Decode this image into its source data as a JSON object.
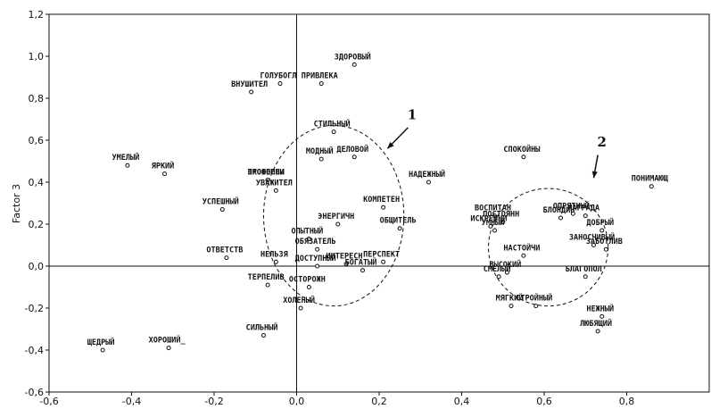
{
  "chart_data": {
    "type": "scatter",
    "ylabel": "Factor 3",
    "xlim": [
      -0.6,
      1.0
    ],
    "ylim": [
      -0.6,
      1.2
    ],
    "x_ticks": [
      "-0,6",
      "-0,4",
      "-0,2",
      "0,0",
      "0,2",
      "0,4",
      "0,6",
      "0,8"
    ],
    "y_ticks": [
      "1,2",
      "1,0",
      "0,8",
      "0,6",
      "0,4",
      "0,2",
      "0,0",
      "-0,2",
      "-0,4",
      "-0,6"
    ],
    "grid": false,
    "reference_lines": {
      "x": 0,
      "y": 0
    },
    "points": [
      {
        "label": "ЗДОРОВЫЙ",
        "x": 0.14,
        "y": 0.96
      },
      {
        "label": "ГОЛУБОГЛ",
        "x": -0.04,
        "y": 0.87
      },
      {
        "label": "ПРИВЛЕКА",
        "x": 0.06,
        "y": 0.87
      },
      {
        "label": "ВНУШИТЕЛ",
        "x": -0.11,
        "y": 0.83
      },
      {
        "label": "СТИЛЬНЫЙ",
        "x": 0.09,
        "y": 0.64
      },
      {
        "label": "МОДНЫЙ",
        "x": 0.06,
        "y": 0.51
      },
      {
        "label": "ДЕЛОВОЙ",
        "x": 0.14,
        "y": 0.52
      },
      {
        "label": "УМЕЛЫЙ",
        "x": -0.41,
        "y": 0.48
      },
      {
        "label": "ЯРКИЙ",
        "x": -0.32,
        "y": 0.44
      },
      {
        "label": "ПРОФЕССИ",
        "x": -0.07,
        "y": 0.41
      },
      {
        "label": "ЭКОНОМНЫ",
        "x": -0.07,
        "y": 0.41
      },
      {
        "label": "УВАЖИТЕЛ",
        "x": -0.05,
        "y": 0.36
      },
      {
        "label": "УСПЕШНЫЙ",
        "x": -0.18,
        "y": 0.27
      },
      {
        "label": "КОМПЕТЕН",
        "x": 0.21,
        "y": 0.28
      },
      {
        "label": "ЭНЕРГИЧН",
        "x": 0.1,
        "y": 0.2
      },
      {
        "label": "ОБЩИТЕЛЬ",
        "x": 0.25,
        "y": 0.18
      },
      {
        "label": "НАДЕЖНЫЙ",
        "x": 0.32,
        "y": 0.4
      },
      {
        "label": "ОПЫТНЫЙ",
        "x": 0.03,
        "y": 0.13
      },
      {
        "label": "ОБЯЗАТЕЛЬ",
        "x": 0.05,
        "y": 0.08
      },
      {
        "label": "ОТВЕТСТВ",
        "x": -0.17,
        "y": 0.04
      },
      {
        "label": "НЕЛЬЗЯ",
        "x": -0.05,
        "y": 0.02
      },
      {
        "label": "ДОСТУПНЫЙ",
        "x": 0.05,
        "y": 0.0
      },
      {
        "label": "ИНТЕРЕСН",
        "x": 0.12,
        "y": 0.01
      },
      {
        "label": "ПЕРСПЕКТ",
        "x": 0.21,
        "y": 0.02
      },
      {
        "label": "БОГАТЫЙ",
        "x": 0.16,
        "y": -0.02
      },
      {
        "label": "ТЕРПЕЛИВ",
        "x": -0.07,
        "y": -0.09
      },
      {
        "label": "ОСТОРОЖН",
        "x": 0.03,
        "y": -0.1
      },
      {
        "label": "ХОЛЕНЫЙ",
        "x": 0.01,
        "y": -0.2
      },
      {
        "label": "СИЛЬНЫЙ",
        "x": -0.08,
        "y": -0.33
      },
      {
        "label": "ЩЕДРЫЙ",
        "x": -0.47,
        "y": -0.4
      },
      {
        "label": "ХОРОШИЙ_",
        "x": -0.31,
        "y": -0.39
      },
      {
        "label": "СПОКОЙНЫ",
        "x": 0.55,
        "y": 0.52
      },
      {
        "label": "ВОСПИТАН",
        "x": 0.48,
        "y": 0.24
      },
      {
        "label": "ПОСТОЯНН",
        "x": 0.5,
        "y": 0.21
      },
      {
        "label": "ИСКРЕННИ",
        "x": 0.47,
        "y": 0.19
      },
      {
        "label": "УМНЫЙ",
        "x": 0.48,
        "y": 0.17
      },
      {
        "label": "НАСТОЙЧИ",
        "x": 0.55,
        "y": 0.05
      },
      {
        "label": "ВЫСОКИЙ",
        "x": 0.51,
        "y": -0.03
      },
      {
        "label": "СМЕЛЫЙ",
        "x": 0.49,
        "y": -0.05
      },
      {
        "label": "МЯГКИЙ",
        "x": 0.52,
        "y": -0.19
      },
      {
        "label": "СТРОЙНЫЙ",
        "x": 0.58,
        "y": -0.19
      },
      {
        "label": "БЛОНДИН",
        "x": 0.64,
        "y": 0.23
      },
      {
        "label": "ОПРЯТНЫЙ",
        "x": 0.67,
        "y": 0.25
      },
      {
        "label": "НАГРАДА",
        "x": 0.7,
        "y": 0.24
      },
      {
        "label": "ДОБРЫЙ",
        "x": 0.74,
        "y": 0.17
      },
      {
        "label": "ЗАНОСЧИВЫЙ",
        "x": 0.72,
        "y": 0.1
      },
      {
        "label": "ЗАБОТЛИВ",
        "x": 0.75,
        "y": 0.08
      },
      {
        "label": "БЛАГОПОЛ",
        "x": 0.7,
        "y": -0.05
      },
      {
        "label": "НЕЖНЫЙ",
        "x": 0.74,
        "y": -0.24
      },
      {
        "label": "ЛЮБЯЩИЙ",
        "x": 0.73,
        "y": -0.31
      },
      {
        "label": "ПОНИМАЮЩ",
        "x": 0.86,
        "y": 0.38
      }
    ],
    "annotations": [
      {
        "text": "1",
        "type": "dashed-ellipse-cluster"
      },
      {
        "text": "2",
        "type": "dashed-ellipse-cluster"
      }
    ]
  }
}
